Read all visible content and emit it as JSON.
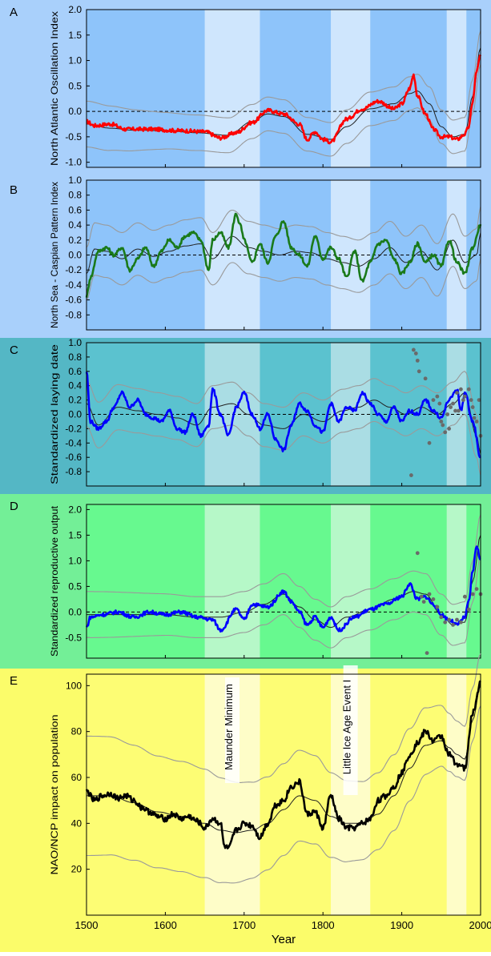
{
  "figure": {
    "x_axis": {
      "label": "Year",
      "ticks": [
        1500,
        1600,
        1700,
        1800,
        1900,
        2000
      ],
      "range": [
        1500,
        2000
      ]
    },
    "highlight_periods": [
      [
        1650,
        1720
      ],
      [
        1810,
        1860
      ],
      [
        1957,
        1982
      ]
    ],
    "colors": {
      "panel_A_bg": "#a9d0fb",
      "panel_A_plot": "#8ec4fa",
      "panel_A_band": "#cfe6fd",
      "panel_C_bg": "#54b7c5",
      "panel_C_plot": "#5bc2cf",
      "panel_C_band": "#aadde4",
      "panel_D_bg": "#73ef97",
      "panel_D_plot": "#67f98f",
      "panel_D_band": "#b6f8c8",
      "panel_E_bg": "#fbfc6a",
      "panel_E_plot": "#fdfd74",
      "panel_E_band": "#fefdc8",
      "series_A": "#ff0000",
      "series_B": "#1a7a1a",
      "series_C": "#0000ff",
      "series_D": "#0000ff",
      "series_E": "#000000",
      "smooth": "#222222",
      "ci": "#9a9a9a",
      "observed_points": "#6a6a6a"
    }
  },
  "chart_data": [
    {
      "type": "line",
      "panel_letter": "A",
      "ylabel": "North Atlantic Oscillation Index",
      "ylim": [
        -1.1,
        2.0
      ],
      "yticks": [
        2.0,
        1.5,
        1.0,
        0.5,
        0.0,
        -0.5,
        -1.0
      ],
      "ytick_labels": [
        "2.0",
        "1.5",
        "1.0",
        "0.5",
        "0.0",
        "-0.5",
        "-1.0"
      ],
      "zero_line": true,
      "series_knots": {
        "x": [
          1500,
          1510,
          1530,
          1550,
          1580,
          1620,
          1650,
          1670,
          1690,
          1710,
          1730,
          1750,
          1770,
          1780,
          1790,
          1800,
          1810,
          1830,
          1850,
          1870,
          1890,
          1900,
          1910,
          1915,
          1920,
          1930,
          1940,
          1950,
          1960,
          1970,
          1980,
          1985,
          1990,
          1995,
          2000
        ],
        "y": [
          -0.2,
          -0.28,
          -0.25,
          -0.35,
          -0.35,
          -0.38,
          -0.4,
          -0.52,
          -0.42,
          -0.22,
          0.02,
          -0.05,
          -0.25,
          -0.55,
          -0.4,
          -0.55,
          -0.6,
          -0.15,
          0.05,
          0.2,
          0.05,
          0.15,
          0.45,
          0.72,
          0.3,
          -0.05,
          -0.35,
          -0.5,
          -0.5,
          -0.55,
          -0.45,
          -0.3,
          0.2,
          0.8,
          1.1
        ]
      },
      "smooth_knots": {
        "x": [
          1500,
          1530,
          1560,
          1600,
          1640,
          1680,
          1710,
          1730,
          1750,
          1780,
          1810,
          1830,
          1860,
          1890,
          1910,
          1920,
          1935,
          1950,
          1965,
          1980,
          1990,
          2000
        ],
        "y": [
          -0.25,
          -0.33,
          -0.37,
          -0.38,
          -0.42,
          -0.47,
          -0.2,
          -0.05,
          -0.1,
          -0.45,
          -0.55,
          -0.3,
          0.05,
          0.15,
          0.35,
          0.4,
          0.15,
          -0.3,
          -0.5,
          -0.45,
          0.3,
          1.25
        ]
      },
      "ci_half_width": [
        0.45,
        0.35,
        0.33,
        0.33,
        0.33
      ]
    },
    {
      "type": "line",
      "panel_letter": "B",
      "ylabel": "North Sea - Caspian Pattern Index",
      "ylim": [
        -1.0,
        1.0
      ],
      "yticks": [
        1.0,
        0.8,
        0.6,
        0.4,
        0.2,
        0.0,
        -0.2,
        -0.4,
        -0.6,
        -0.8
      ],
      "ytick_labels": [
        "1.0",
        "0.8",
        "0.6",
        "0.4",
        "0.2",
        "0.0",
        "-0.2",
        "-0.4",
        "-0.6",
        "-0.8"
      ],
      "zero_line": true,
      "series_knots": {
        "x": [
          1500,
          1505,
          1515,
          1525,
          1535,
          1545,
          1555,
          1565,
          1575,
          1585,
          1595,
          1605,
          1615,
          1625,
          1635,
          1645,
          1655,
          1660,
          1670,
          1680,
          1690,
          1695,
          1700,
          1710,
          1720,
          1730,
          1740,
          1750,
          1760,
          1770,
          1780,
          1790,
          1800,
          1810,
          1820,
          1830,
          1840,
          1850,
          1860,
          1870,
          1880,
          1890,
          1900,
          1910,
          1920,
          1930,
          1940,
          1950,
          1960,
          1970,
          1980,
          1990,
          2000
        ],
        "y": [
          -0.55,
          -0.3,
          0.05,
          0.1,
          0.0,
          0.1,
          -0.2,
          -0.05,
          0.1,
          -0.15,
          0.05,
          0.2,
          0.1,
          0.25,
          0.3,
          0.2,
          -0.2,
          0.2,
          0.3,
          0.1,
          0.55,
          0.4,
          0.2,
          -0.1,
          0.15,
          -0.1,
          0.25,
          0.45,
          0.1,
          0.0,
          -0.15,
          0.25,
          -0.05,
          0.1,
          -0.05,
          -0.3,
          0.05,
          -0.35,
          -0.1,
          0.15,
          0.2,
          -0.05,
          -0.25,
          -0.1,
          0.15,
          -0.1,
          0.0,
          -0.15,
          0.2,
          -0.1,
          -0.25,
          0.1,
          0.4
        ]
      },
      "smooth_knots": {
        "x": [
          1500,
          1510,
          1525,
          1545,
          1565,
          1585,
          1605,
          1625,
          1645,
          1660,
          1685,
          1705,
          1725,
          1745,
          1765,
          1785,
          1805,
          1825,
          1845,
          1865,
          1885,
          1905,
          1925,
          1945,
          1965,
          1980,
          1995,
          2000
        ],
        "y": [
          -0.25,
          0.08,
          0.05,
          -0.05,
          0.08,
          -0.02,
          0.05,
          0.12,
          0.15,
          -0.05,
          0.25,
          0.1,
          0.05,
          0.0,
          0.05,
          0.03,
          -0.05,
          -0.1,
          -0.15,
          -0.05,
          0.1,
          -0.1,
          0.05,
          -0.2,
          0.2,
          -0.1,
          0.0,
          0.3
        ]
      },
      "ci_half_width": [
        0.35,
        0.35,
        0.35,
        0.35,
        0.35
      ]
    },
    {
      "type": "line",
      "panel_letter": "C",
      "ylabel": "Standardized laying date",
      "ylim": [
        -1.0,
        1.0
      ],
      "yticks": [
        1.0,
        0.8,
        0.6,
        0.4,
        0.2,
        0.0,
        -0.2,
        -0.4,
        -0.6,
        -0.8
      ],
      "ytick_labels": [
        "1.0",
        "0.8",
        "0.6",
        "0.4",
        "0.2",
        "0.0",
        "-0.2",
        "-0.4",
        "-0.6",
        "-0.8"
      ],
      "zero_line": true,
      "series_knots": {
        "x": [
          1500,
          1505,
          1515,
          1525,
          1535,
          1545,
          1555,
          1565,
          1575,
          1585,
          1595,
          1605,
          1615,
          1625,
          1635,
          1645,
          1655,
          1660,
          1670,
          1680,
          1690,
          1700,
          1710,
          1720,
          1730,
          1740,
          1750,
          1760,
          1770,
          1780,
          1790,
          1800,
          1810,
          1820,
          1830,
          1840,
          1850,
          1860,
          1870,
          1880,
          1890,
          1900,
          1910,
          1920,
          1930,
          1940,
          1950,
          1960,
          1970,
          1975,
          1980,
          1990,
          2000
        ],
        "y": [
          0.6,
          -0.1,
          -0.2,
          -0.1,
          0.1,
          0.3,
          0.1,
          0.2,
          0.0,
          -0.05,
          -0.1,
          0.05,
          -0.2,
          -0.25,
          0.0,
          -0.3,
          -0.15,
          0.35,
          0.0,
          -0.3,
          0.1,
          0.3,
          0.0,
          -0.2,
          0.0,
          -0.35,
          -0.5,
          -0.15,
          0.15,
          0.05,
          -0.15,
          -0.25,
          0.15,
          -0.1,
          0.1,
          0.05,
          0.3,
          0.15,
          0.0,
          -0.1,
          0.1,
          -0.1,
          0.05,
          0.0,
          0.2,
          0.05,
          -0.05,
          0.2,
          0.35,
          0.05,
          0.3,
          -0.1,
          -0.6
        ]
      },
      "smooth_knots": {
        "x": [
          1500,
          1515,
          1540,
          1565,
          1590,
          1615,
          1640,
          1660,
          1685,
          1705,
          1725,
          1750,
          1775,
          1800,
          1825,
          1845,
          1865,
          1885,
          1905,
          1925,
          1945,
          1965,
          1980,
          1995,
          2000
        ],
        "y": [
          0.15,
          -0.15,
          0.1,
          0.05,
          0.0,
          -0.05,
          -0.15,
          0.1,
          0.15,
          0.0,
          -0.15,
          -0.2,
          0.0,
          -0.1,
          0.05,
          0.1,
          0.2,
          0.1,
          0.0,
          0.1,
          0.0,
          0.15,
          0.3,
          -0.3,
          -0.55
        ]
      },
      "ci_half_width": [
        0.32,
        0.3,
        0.3,
        0.3,
        0.3
      ],
      "observed_points": {
        "x": [
          1912,
          1915,
          1918,
          1920,
          1922,
          1930,
          1935,
          1940,
          1945,
          1948,
          1950,
          1952,
          1955,
          1958,
          1960,
          1962,
          1965,
          1968,
          1970,
          1972,
          1975,
          1978,
          1980,
          1985,
          1988,
          1990,
          1992,
          1995,
          1998,
          2000
        ],
        "y": [
          -0.85,
          0.9,
          0.85,
          0.75,
          0.6,
          0.5,
          -0.4,
          0.2,
          0.25,
          0.15,
          -0.1,
          -0.15,
          -0.25,
          0.0,
          -0.2,
          0.1,
          0.15,
          0.05,
          0.3,
          0.05,
          0.35,
          0.2,
          0.25,
          0.35,
          0.2,
          0.1,
          -0.05,
          -0.1,
          0.2,
          -0.3
        ]
      }
    },
    {
      "type": "line",
      "panel_letter": "D",
      "ylabel": "Standardized reproductive output",
      "ylim": [
        -0.9,
        2.1
      ],
      "yticks": [
        2.0,
        1.5,
        1.0,
        0.5,
        0.0,
        -0.5
      ],
      "ytick_labels": [
        "2.0",
        "1.5",
        "1.0",
        "0.5",
        "0.0",
        "-0.5"
      ],
      "zero_line": true,
      "series_knots": {
        "x": [
          1500,
          1505,
          1520,
          1540,
          1560,
          1580,
          1600,
          1620,
          1640,
          1660,
          1670,
          1690,
          1700,
          1710,
          1730,
          1750,
          1760,
          1770,
          1780,
          1790,
          1800,
          1810,
          1820,
          1840,
          1860,
          1880,
          1900,
          1910,
          1920,
          1930,
          1940,
          1950,
          1960,
          1970,
          1980,
          1985,
          1990,
          1995,
          2000
        ],
        "y": [
          -0.3,
          -0.1,
          -0.05,
          0.0,
          -0.1,
          0.0,
          -0.05,
          0.0,
          -0.1,
          -0.15,
          -0.35,
          0.05,
          -0.15,
          0.15,
          0.1,
          0.4,
          0.2,
          0.0,
          -0.25,
          -0.1,
          -0.3,
          -0.1,
          -0.35,
          -0.1,
          0.05,
          0.15,
          0.3,
          0.55,
          0.25,
          0.3,
          0.15,
          -0.05,
          -0.15,
          -0.25,
          -0.1,
          0.2,
          0.8,
          1.3,
          1.0
        ]
      },
      "smooth_knots": {
        "x": [
          1500,
          1530,
          1560,
          1600,
          1640,
          1670,
          1700,
          1725,
          1750,
          1770,
          1790,
          1810,
          1830,
          1860,
          1890,
          1915,
          1930,
          1950,
          1965,
          1980,
          1990,
          2000
        ],
        "y": [
          -0.05,
          -0.05,
          -0.05,
          -0.05,
          -0.1,
          -0.1,
          0.0,
          0.15,
          0.35,
          0.1,
          -0.15,
          -0.3,
          -0.1,
          0.05,
          0.25,
          0.4,
          0.35,
          -0.05,
          -0.25,
          -0.2,
          0.6,
          1.5
        ]
      },
      "ci_half_width": [
        0.45,
        0.4,
        0.4,
        0.4,
        0.4
      ],
      "observed_points": {
        "x": [
          1920,
          1925,
          1928,
          1932,
          1935,
          1940,
          1945,
          1950,
          1955,
          1960,
          1965,
          1970,
          1975,
          1980,
          1985,
          1990,
          1995,
          2000
        ],
        "y": [
          1.15,
          0.3,
          0.2,
          -0.8,
          0.35,
          0.25,
          0.1,
          -0.1,
          -0.2,
          -0.15,
          -0.25,
          -0.15,
          -0.2,
          0.3,
          0.05,
          0.35,
          0.45,
          0.35
        ]
      }
    },
    {
      "type": "line",
      "panel_letter": "E",
      "ylabel": "NAO/NCP impact on population",
      "ylim": [
        0,
        105
      ],
      "yticks": [
        100,
        80,
        60,
        40,
        20
      ],
      "ytick_labels": [
        "100",
        "80",
        "60",
        "40",
        "20"
      ],
      "zero_line": false,
      "period_labels": [
        "Maunder Minimum",
        "Little Ice Age Event I"
      ],
      "series_knots": {
        "x": [
          1500,
          1510,
          1520,
          1530,
          1540,
          1550,
          1560,
          1570,
          1580,
          1590,
          1600,
          1610,
          1620,
          1630,
          1640,
          1650,
          1660,
          1670,
          1675,
          1680,
          1690,
          1700,
          1710,
          1720,
          1730,
          1740,
          1750,
          1760,
          1770,
          1780,
          1790,
          1800,
          1810,
          1820,
          1830,
          1840,
          1850,
          1860,
          1870,
          1880,
          1890,
          1900,
          1910,
          1920,
          1930,
          1940,
          1950,
          1960,
          1970,
          1980,
          1990,
          2000
        ],
        "y": [
          54,
          50,
          52,
          53,
          51,
          52,
          50,
          47,
          45,
          43,
          42,
          44,
          42,
          43,
          41,
          38,
          42,
          40,
          30,
          29,
          37,
          40,
          39,
          34,
          40,
          48,
          50,
          56,
          58,
          44,
          45,
          38,
          52,
          42,
          38,
          38,
          40,
          42,
          50,
          52,
          56,
          62,
          70,
          75,
          80,
          76,
          78,
          70,
          66,
          64,
          88,
          101
        ]
      },
      "smooth_knots": {
        "x": [
          1500,
          1530,
          1560,
          1590,
          1620,
          1650,
          1670,
          1690,
          1710,
          1730,
          1750,
          1770,
          1790,
          1810,
          1830,
          1850,
          1870,
          1890,
          1910,
          1930,
          1950,
          1960,
          1970,
          1980,
          1990,
          2000
        ],
        "y": [
          52,
          52,
          49,
          45,
          43,
          40,
          37,
          36,
          37,
          40,
          46,
          52,
          50,
          43,
          40,
          40,
          44,
          52,
          64,
          74,
          76,
          73,
          70,
          68,
          85,
          100
        ]
      },
      "ci_half_width": [
        26,
        24,
        20,
        16,
        10
      ],
      "ci_shift": [
        0,
        0,
        0,
        2,
        4
      ]
    }
  ]
}
